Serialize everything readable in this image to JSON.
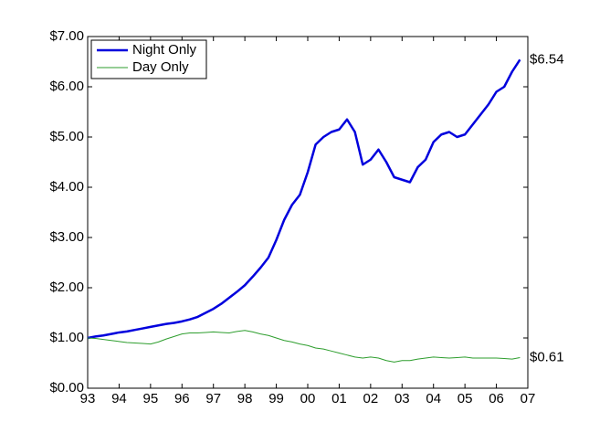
{
  "chart_data": {
    "type": "line",
    "x": [
      1993,
      1993.25,
      1993.5,
      1993.75,
      1994,
      1994.25,
      1994.5,
      1994.75,
      1995,
      1995.25,
      1995.5,
      1995.75,
      1996,
      1996.25,
      1996.5,
      1996.75,
      1997,
      1997.25,
      1997.5,
      1997.75,
      1998,
      1998.25,
      1998.5,
      1998.75,
      1999,
      1999.25,
      1999.5,
      1999.75,
      2000,
      2000.25,
      2000.5,
      2000.75,
      2001,
      2001.25,
      2001.5,
      2001.75,
      2002,
      2002.25,
      2002.5,
      2002.75,
      2003,
      2003.25,
      2003.5,
      2003.75,
      2004,
      2004.25,
      2004.5,
      2004.75,
      2005,
      2005.25,
      2005.5,
      2005.75,
      2006,
      2006.25,
      2006.5,
      2006.75
    ],
    "series": [
      {
        "name": "Night Only",
        "color": "#0000dd",
        "line_width": 2.5,
        "values": [
          1.0,
          1.03,
          1.05,
          1.08,
          1.11,
          1.13,
          1.16,
          1.19,
          1.22,
          1.25,
          1.28,
          1.3,
          1.33,
          1.37,
          1.42,
          1.5,
          1.58,
          1.68,
          1.8,
          1.92,
          2.05,
          2.22,
          2.4,
          2.6,
          2.95,
          3.35,
          3.65,
          3.85,
          4.3,
          4.85,
          5.0,
          5.1,
          5.15,
          5.35,
          5.1,
          4.45,
          4.55,
          4.75,
          4.5,
          4.2,
          4.15,
          4.1,
          4.4,
          4.55,
          4.9,
          5.05,
          5.1,
          5.0,
          5.05,
          5.25,
          5.45,
          5.65,
          5.9,
          6.0,
          6.3,
          6.54
        ]
      },
      {
        "name": "Day Only",
        "color": "#2e9e2e",
        "line_width": 1,
        "values": [
          1.0,
          0.99,
          0.97,
          0.95,
          0.93,
          0.91,
          0.9,
          0.89,
          0.88,
          0.92,
          0.98,
          1.03,
          1.08,
          1.1,
          1.1,
          1.11,
          1.12,
          1.11,
          1.1,
          1.13,
          1.15,
          1.12,
          1.08,
          1.05,
          1.0,
          0.95,
          0.92,
          0.88,
          0.85,
          0.8,
          0.78,
          0.74,
          0.7,
          0.66,
          0.62,
          0.6,
          0.62,
          0.6,
          0.55,
          0.52,
          0.55,
          0.55,
          0.58,
          0.6,
          0.62,
          0.61,
          0.6,
          0.61,
          0.62,
          0.6,
          0.6,
          0.6,
          0.6,
          0.59,
          0.58,
          0.61
        ]
      }
    ],
    "xlim": [
      1993,
      2007
    ],
    "xticks": [
      {
        "value": 1993,
        "label": "93"
      },
      {
        "value": 1994,
        "label": "94"
      },
      {
        "value": 1995,
        "label": "95"
      },
      {
        "value": 1996,
        "label": "96"
      },
      {
        "value": 1997,
        "label": "97"
      },
      {
        "value": 1998,
        "label": "98"
      },
      {
        "value": 1999,
        "label": "99"
      },
      {
        "value": 2000,
        "label": "00"
      },
      {
        "value": 2001,
        "label": "01"
      },
      {
        "value": 2002,
        "label": "02"
      },
      {
        "value": 2003,
        "label": "03"
      },
      {
        "value": 2004,
        "label": "04"
      },
      {
        "value": 2005,
        "label": "05"
      },
      {
        "value": 2006,
        "label": "06"
      },
      {
        "value": 2007,
        "label": "07"
      }
    ],
    "ylim": [
      0,
      7
    ],
    "yticks": [
      {
        "value": 0,
        "label": "$0.00"
      },
      {
        "value": 1,
        "label": "$1.00"
      },
      {
        "value": 2,
        "label": "$2.00"
      },
      {
        "value": 3,
        "label": "$3.00"
      },
      {
        "value": 4,
        "label": "$4.00"
      },
      {
        "value": 5,
        "label": "$5.00"
      },
      {
        "value": 6,
        "label": "$6.00"
      },
      {
        "value": 7,
        "label": "$7.00"
      }
    ],
    "grid": false,
    "legend": "upper-left",
    "annotations": [
      {
        "value": 6.54,
        "label": "$6.54"
      },
      {
        "value": 0.61,
        "label": "$0.61"
      }
    ]
  }
}
